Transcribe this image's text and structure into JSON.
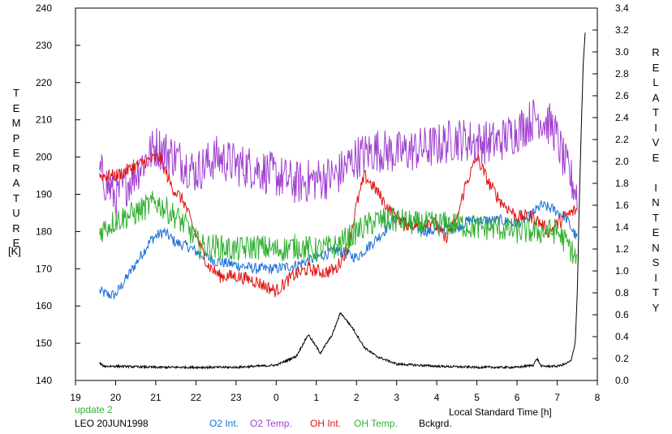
{
  "chart_data": {
    "type": "line",
    "title": "",
    "xlabel": "Local Standard Time [h]",
    "ylabel_left": "TEMPERATURE",
    "ylabel_left_unit": "[K]",
    "ylabel_right": "RELATIVE INTENSITY",
    "x_range": [
      19,
      32
    ],
    "x_ticks": [
      19,
      20,
      21,
      22,
      23,
      24,
      25,
      26,
      27,
      28,
      29,
      30,
      31,
      32
    ],
    "x_tick_labels": [
      "19",
      "20",
      "21",
      "22",
      "23",
      "0",
      "1",
      "2",
      "3",
      "4",
      "5",
      "6",
      "7",
      "8"
    ],
    "ylim_left": [
      140,
      240
    ],
    "y_ticks_left": [
      140,
      150,
      160,
      170,
      180,
      190,
      200,
      210,
      220,
      230,
      240
    ],
    "ylim_right": [
      0.0,
      3.4
    ],
    "y_ticks_right": [
      "0.0",
      "0.2",
      "0.4",
      "0.6",
      "0.8",
      "1.0",
      "1.2",
      "1.4",
      "1.6",
      "1.8",
      "2.0",
      "2.2",
      "2.4",
      "2.6",
      "2.8",
      "3.0",
      "3.2",
      "3.4"
    ],
    "grid": false,
    "series": [
      {
        "name": "O2 Int.",
        "color": "#1a6fd6",
        "axis": "left",
        "noise": 1.5,
        "x": [
          19.6,
          19.8,
          20.0,
          20.3,
          20.6,
          20.9,
          21.2,
          21.5,
          21.8,
          22.1,
          22.5,
          23.0,
          23.5,
          24.0,
          24.5,
          25.0,
          25.5,
          26.0,
          26.3,
          26.6,
          27.0,
          27.4,
          27.8,
          28.2,
          28.5,
          28.8,
          29.2,
          29.6,
          30.0,
          30.3,
          30.6,
          30.9,
          31.2,
          31.5
        ],
        "y": [
          164,
          163,
          163,
          168,
          173,
          178,
          180,
          177,
          176,
          174,
          172,
          171,
          170,
          170,
          171,
          173,
          175,
          173,
          176,
          179,
          184,
          181,
          180,
          181,
          181,
          183,
          183,
          183,
          182,
          184,
          187,
          186,
          184,
          178
        ]
      },
      {
        "name": "O2 Temp.",
        "color": "#a040d0",
        "axis": "left",
        "noise": 6,
        "x": [
          19.6,
          20.0,
          20.5,
          21.0,
          21.5,
          22.0,
          22.5,
          23.0,
          23.5,
          24.0,
          24.5,
          25.0,
          25.5,
          26.0,
          26.5,
          27.0,
          27.5,
          28.0,
          28.5,
          29.0,
          29.5,
          30.0,
          30.5,
          30.9,
          31.2,
          31.5
        ],
        "y": [
          196,
          189,
          196,
          203,
          200,
          196,
          200,
          198,
          197,
          195,
          193,
          194,
          195,
          200,
          202,
          201,
          202,
          203,
          205,
          204,
          204,
          207,
          211,
          208,
          198,
          190
        ]
      },
      {
        "name": "OH Int.",
        "color": "#e01010",
        "axis": "left",
        "noise": 1.8,
        "x": [
          19.6,
          20.0,
          20.4,
          20.8,
          21.1,
          21.4,
          21.7,
          22.0,
          22.3,
          22.6,
          23.0,
          23.4,
          23.8,
          24.0,
          24.4,
          24.8,
          25.2,
          25.5,
          25.8,
          26.0,
          26.2,
          26.5,
          26.8,
          27.2,
          27.6,
          27.9,
          28.2,
          28.5,
          28.7,
          29.0,
          29.3,
          29.6,
          30.0,
          30.4,
          30.8,
          31.2,
          31.5
        ],
        "y": [
          195,
          195,
          197,
          199,
          200,
          192,
          188,
          179,
          171,
          168,
          168,
          167,
          165,
          164,
          168,
          170,
          169,
          170,
          176,
          187,
          195,
          191,
          186,
          182,
          182,
          183,
          178,
          183,
          192,
          200,
          193,
          188,
          184,
          184,
          180,
          184,
          186
        ]
      },
      {
        "name": "OH Temp.",
        "color": "#30b030",
        "axis": "left",
        "noise": 3.5,
        "x": [
          19.6,
          20.0,
          20.5,
          21.0,
          21.5,
          21.8,
          22.1,
          22.5,
          23.0,
          23.5,
          24.0,
          24.5,
          25.0,
          25.5,
          26.0,
          26.5,
          27.0,
          27.5,
          28.0,
          28.5,
          29.0,
          29.5,
          30.0,
          30.5,
          31.0,
          31.3,
          31.5
        ],
        "y": [
          180,
          183,
          185,
          188,
          184,
          181,
          176,
          176,
          175,
          176,
          175,
          176,
          175,
          176,
          180,
          183,
          183,
          182,
          182,
          182,
          181,
          181,
          180,
          180,
          180,
          176,
          172
        ]
      },
      {
        "name": "Bckgrd.",
        "color": "#000000",
        "axis": "right",
        "noise": 0.01,
        "x": [
          19.6,
          19.7,
          20.0,
          21.0,
          22.0,
          23.0,
          24.0,
          24.5,
          24.8,
          25.1,
          25.4,
          25.6,
          25.9,
          26.2,
          26.5,
          27.0,
          28.0,
          29.0,
          30.0,
          30.4,
          30.5,
          30.6,
          31.0,
          31.2,
          31.35,
          31.45,
          31.5,
          31.55,
          31.6,
          31.65,
          31.7
        ],
        "y": [
          0.16,
          0.13,
          0.13,
          0.12,
          0.12,
          0.12,
          0.14,
          0.22,
          0.42,
          0.25,
          0.42,
          0.62,
          0.48,
          0.3,
          0.22,
          0.15,
          0.13,
          0.12,
          0.12,
          0.14,
          0.2,
          0.13,
          0.13,
          0.15,
          0.18,
          0.35,
          0.8,
          1.6,
          2.3,
          2.9,
          3.2
        ]
      }
    ]
  },
  "footer": {
    "update_text": "update 2",
    "station_text": "LEO 20JUN1998"
  }
}
